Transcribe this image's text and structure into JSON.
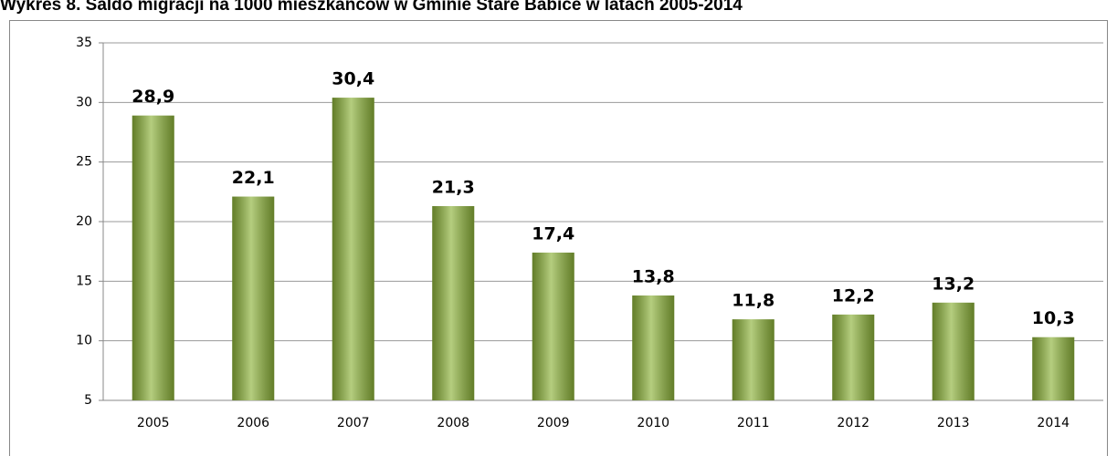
{
  "chart_data": {
    "type": "bar",
    "title": "Wykres 8. Saldo migracji na 1000 mieszkańców w Gminie Stare Babice w latach 2005-2014",
    "categories": [
      "2005",
      "2006",
      "2007",
      "2008",
      "2009",
      "2010",
      "2011",
      "2012",
      "2013",
      "2014"
    ],
    "values": [
      28.9,
      22.1,
      30.4,
      21.3,
      17.4,
      13.8,
      11.8,
      12.2,
      13.2,
      10.3
    ],
    "value_labels": [
      "28,9",
      "22,1",
      "30,4",
      "21,3",
      "17,4",
      "13,8",
      "11,8",
      "12,2",
      "13,2",
      "10,3"
    ],
    "color": "#8db33a",
    "ylim": [
      5,
      35
    ],
    "yticks": [
      5,
      10,
      15,
      20,
      25,
      30,
      35
    ],
    "grid": true
  }
}
